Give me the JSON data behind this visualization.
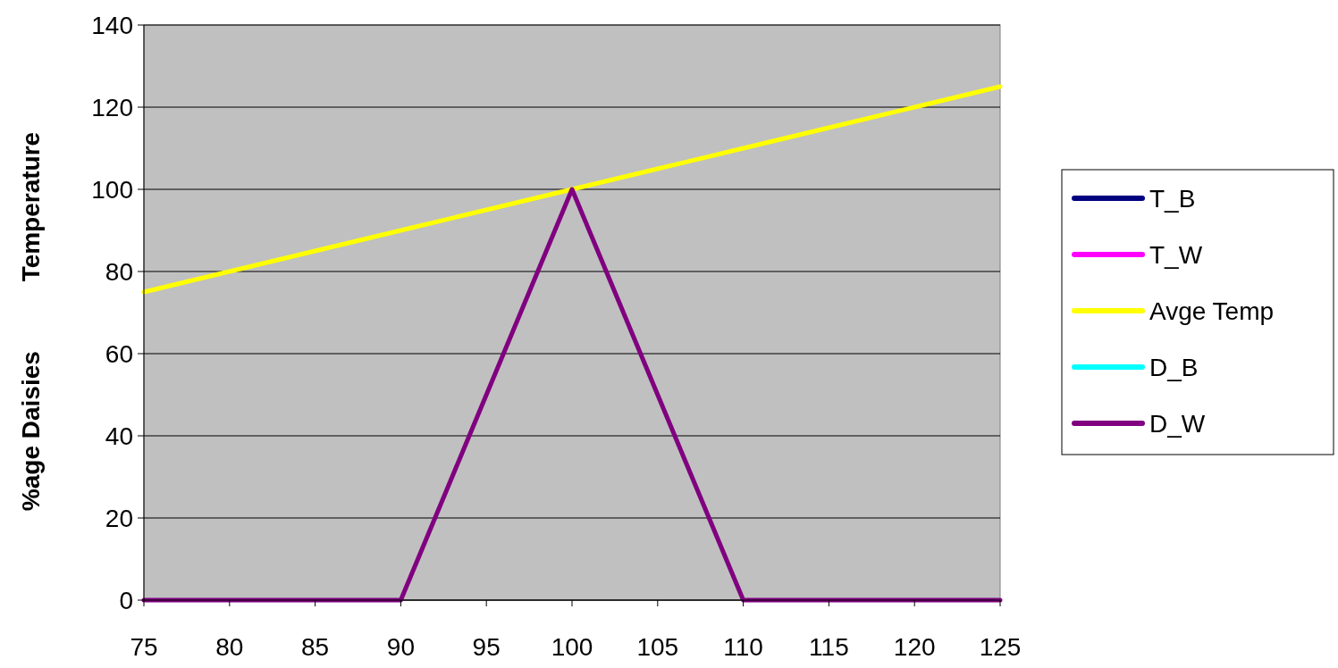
{
  "chart_data": {
    "type": "line",
    "ylabel": "%age Daisies          Temperature",
    "xlim": [
      75,
      125
    ],
    "xticks": [
      75,
      80,
      85,
      90,
      95,
      100,
      105,
      110,
      115,
      120,
      125
    ],
    "ylim": [
      0,
      140
    ],
    "yticks": [
      0,
      20,
      40,
      60,
      80,
      100,
      120,
      140
    ],
    "grid": "y",
    "legend": "right",
    "line_style": "solid",
    "series": [
      {
        "name": "T_B",
        "color": "#000080"
      },
      {
        "name": "T_W",
        "color": "#ff00ff"
      },
      {
        "name": "Avge Temp",
        "color": "#ffff00",
        "x": [
          75,
          80,
          85,
          90,
          95,
          100,
          105,
          110,
          115,
          120,
          125
        ],
        "values": [
          75,
          80,
          85,
          90,
          95,
          100,
          105,
          110,
          115,
          120,
          125
        ]
      },
      {
        "name": "D_B",
        "color": "#00ffff"
      },
      {
        "name": "D_W",
        "color": "#800080",
        "x": [
          75,
          90,
          91,
          92,
          93,
          94,
          95,
          96,
          97,
          98,
          99,
          100,
          101,
          102,
          103,
          104,
          105,
          106,
          107,
          108,
          109,
          110,
          125
        ],
        "values": [
          0,
          0,
          10,
          20,
          30,
          40,
          50,
          60,
          70,
          80,
          90,
          100,
          90,
          80,
          70,
          60,
          50,
          40,
          30,
          20,
          10,
          0,
          0
        ]
      }
    ]
  }
}
